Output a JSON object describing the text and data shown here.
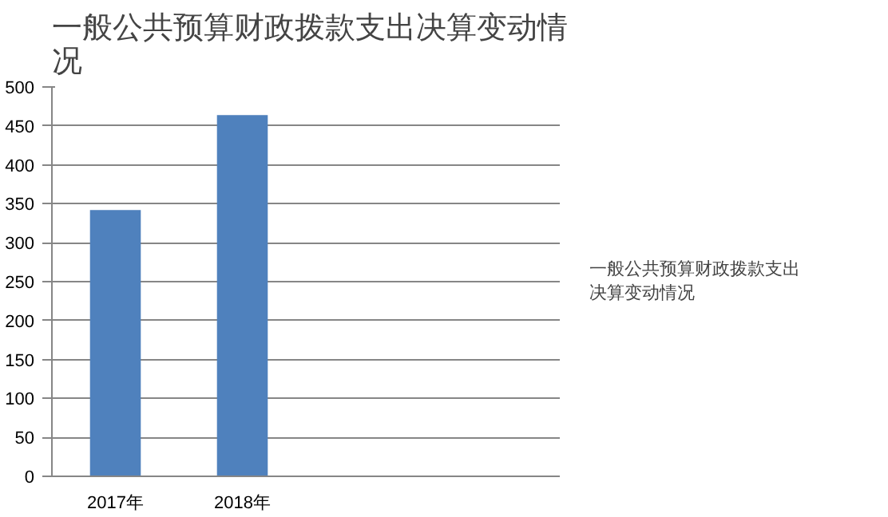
{
  "chart_data": {
    "type": "bar",
    "title": "一般公共预算财政拨款支出决算变动情况",
    "categories": [
      "2017年",
      "2018年",
      null,
      null
    ],
    "series": [
      {
        "name": "一般公共预算财政拨款支出决算变动情况",
        "color": "#4f81bd",
        "values": [
          342,
          464,
          null,
          null
        ]
      }
    ],
    "ylim": [
      0,
      500
    ],
    "yticks": [
      0,
      50,
      100,
      150,
      200,
      250,
      300,
      350,
      400,
      450,
      500
    ],
    "grid": "y",
    "legend": "right"
  }
}
